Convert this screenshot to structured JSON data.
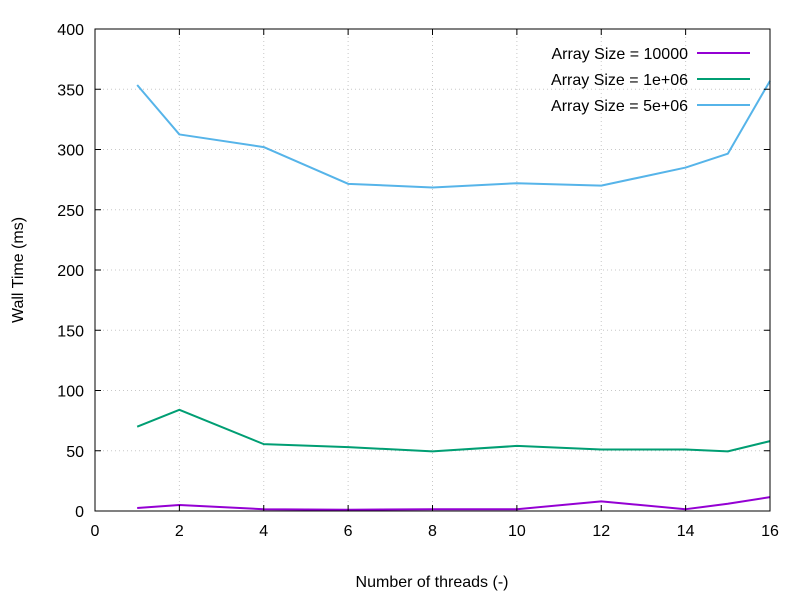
{
  "chart_data": {
    "type": "line",
    "title": "",
    "xlabel": "Number of threads (-)",
    "ylabel": "Wall Time (ms)",
    "xlim": [
      0,
      16
    ],
    "ylim": [
      0,
      400
    ],
    "xticks": [
      0,
      2,
      4,
      6,
      8,
      10,
      12,
      14,
      16
    ],
    "yticks": [
      0,
      50,
      100,
      150,
      200,
      250,
      300,
      350,
      400
    ],
    "grid": true,
    "legend_position": "top-right",
    "x": [
      1,
      2,
      4,
      6,
      8,
      10,
      12,
      14,
      15,
      16
    ],
    "series": [
      {
        "name": "Array Size = 10000",
        "color": "#9400d3",
        "values": [
          2.5,
          5,
          1.5,
          1,
          1.5,
          1.5,
          8,
          1.5,
          6,
          11.5
        ]
      },
      {
        "name": "Array Size = 1e+06",
        "color": "#009e73",
        "values": [
          70,
          84,
          55.5,
          53,
          49.5,
          54,
          51,
          51,
          49.5,
          58
        ]
      },
      {
        "name": "Array Size = 5e+06",
        "color": "#56b4e9",
        "values": [
          353.5,
          312.5,
          302,
          271.5,
          268.5,
          272,
          270,
          285,
          296.5,
          357
        ]
      }
    ]
  }
}
